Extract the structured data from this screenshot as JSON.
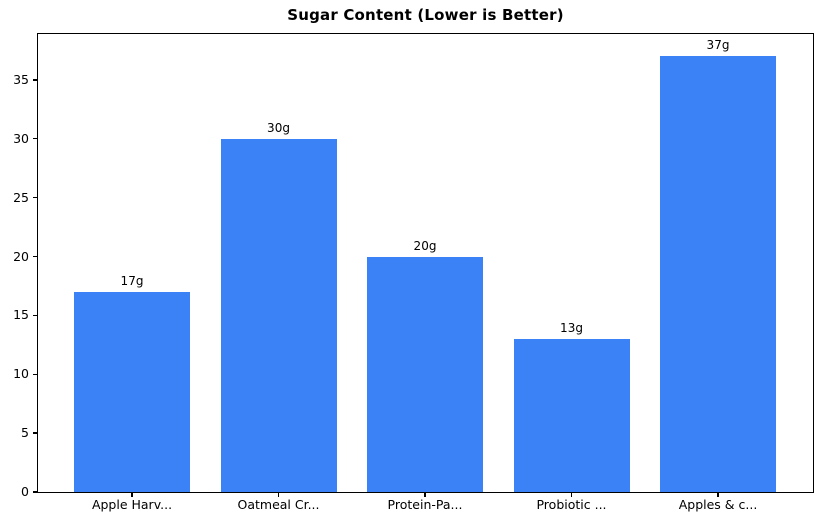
{
  "chart_data": {
    "type": "bar",
    "title": "Sugar Content (Lower is Better)",
    "categories": [
      "Apple Harv...",
      "Oatmeal Cr...",
      "Protein-Pa...",
      "Probiotic ...",
      "Apples & c..."
    ],
    "values": [
      17,
      30,
      20,
      13,
      37
    ],
    "value_labels": [
      "17g",
      "30g",
      "20g",
      "13g",
      "37g"
    ],
    "yticks": [
      0,
      5,
      10,
      15,
      20,
      25,
      30,
      35
    ],
    "ylim": [
      0,
      38.9
    ],
    "xlabel": "",
    "ylabel": "",
    "bar_color": "#3b82f6",
    "axis_color": "#000000",
    "background_color": "#ffffff",
    "grid": false,
    "legend": null
  }
}
